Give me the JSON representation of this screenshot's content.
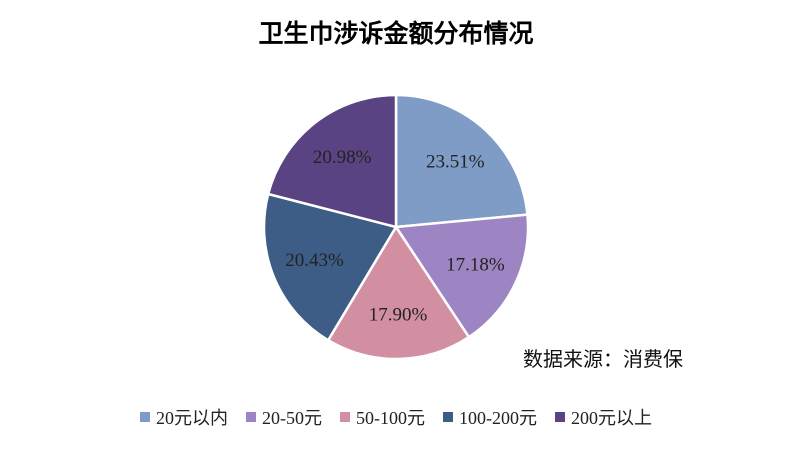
{
  "chart_data": {
    "type": "pie",
    "title": "卫生巾涉诉金额分布情况",
    "source_note": "数据来源：消费保",
    "categories": [
      "20元以内",
      "20-50元",
      "50-100元",
      "100-200元",
      "200元以上"
    ],
    "values": [
      23.51,
      17.18,
      17.9,
      20.43,
      20.98
    ],
    "value_labels": [
      "23.51%",
      "17.18%",
      "17.90%",
      "20.43%",
      "20.98%"
    ],
    "colors": [
      "#7f9cc6",
      "#9d85c3",
      "#d28fa2",
      "#3d5d86",
      "#5a4382"
    ],
    "legend": "bottom",
    "start_angle": "12 o'clock",
    "direction": "clockwise"
  }
}
